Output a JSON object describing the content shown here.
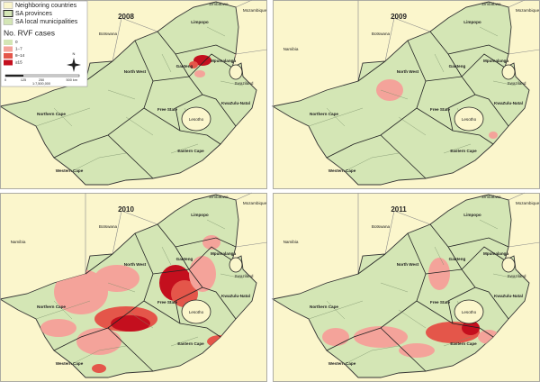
{
  "legend": {
    "layers": [
      {
        "label": "Neighboring countries",
        "color": "#fbf6cc"
      },
      {
        "label": "SA provinces",
        "color": "#d4e6b5"
      },
      {
        "label": "SA local municipalities",
        "color": "#d4e6b5"
      }
    ],
    "title": "No. RVF cases",
    "classes": [
      {
        "label": "0",
        "color": "#d4e6b5"
      },
      {
        "label": "1–7",
        "color": "#f4a39a"
      },
      {
        "label": "8–14",
        "color": "#e4564a"
      },
      {
        "label": "≥15",
        "color": "#c40f1e"
      }
    ],
    "north": "N",
    "scale": {
      "ticks": [
        "0",
        "125",
        "250",
        "500 km"
      ],
      "ratio": "1:7,500,000"
    }
  },
  "places": {
    "countries": [
      "Namibia",
      "Botswana",
      "Zimbabwe",
      "Mozambique",
      "Swaziland",
      "Lesotho"
    ],
    "provinces": [
      "Limpopo",
      "North West",
      "Gauteng",
      "Mpumalanga",
      "Free State",
      "KwaZulu-Natal",
      "Northern Cape",
      "Eastern Cape",
      "Western Cape"
    ]
  },
  "panels": [
    {
      "year": "2008"
    },
    {
      "year": "2009"
    },
    {
      "year": "2010"
    },
    {
      "year": "2011"
    }
  ]
}
